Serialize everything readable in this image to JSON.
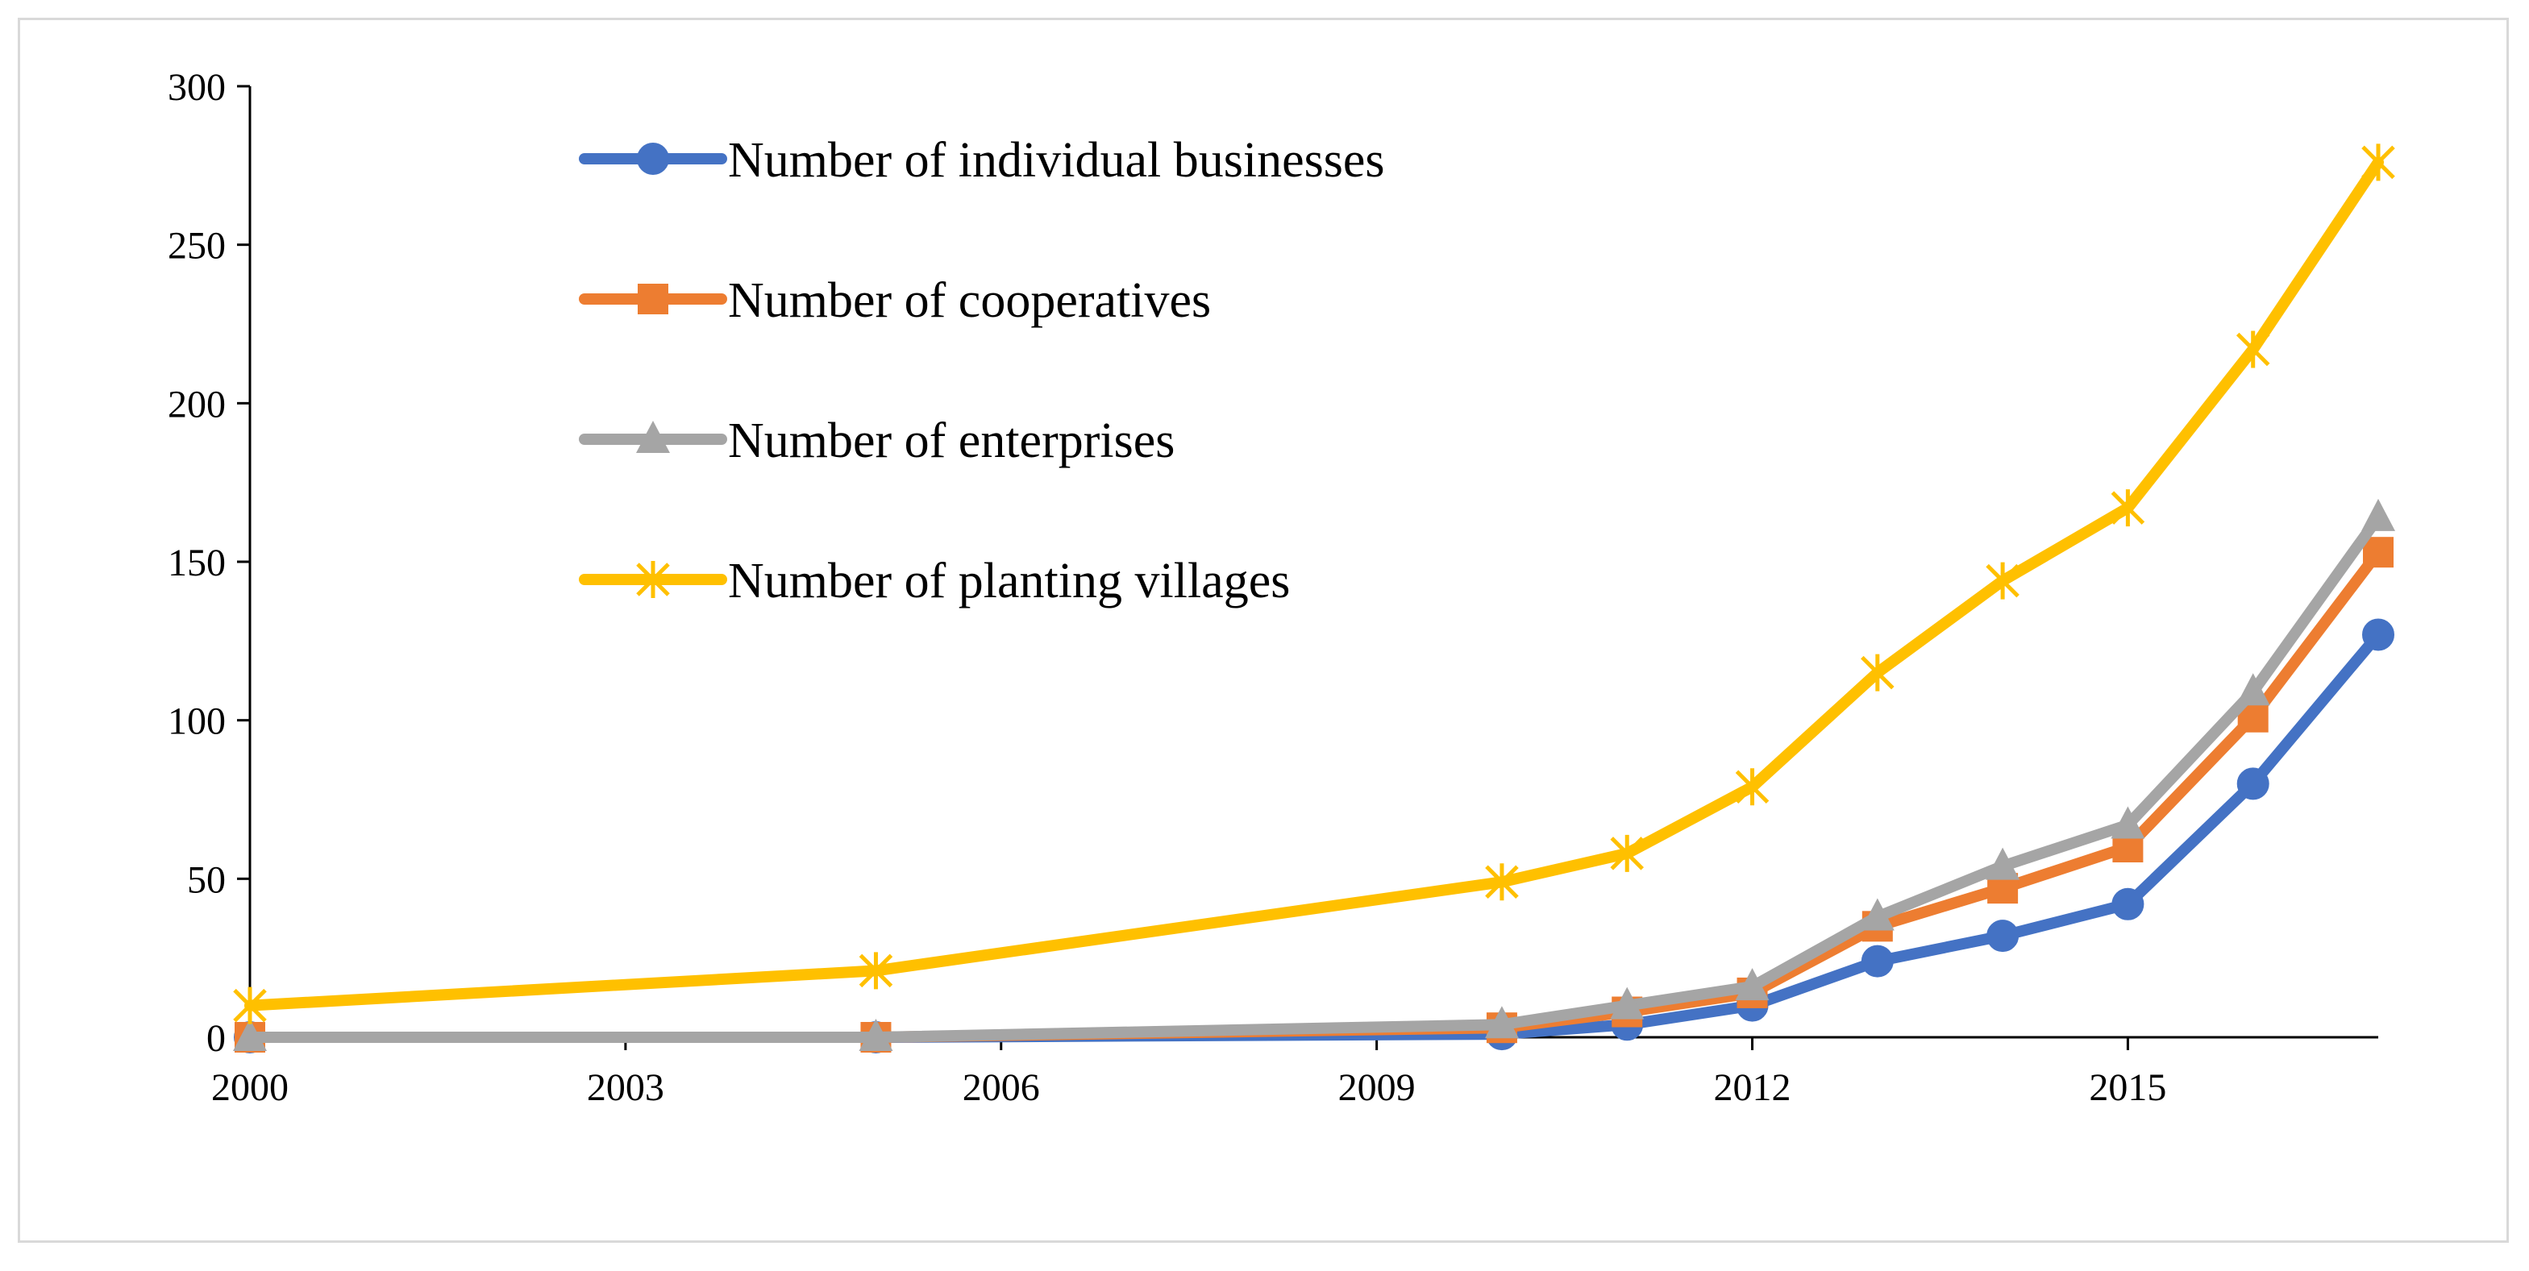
{
  "chart_data": {
    "type": "line",
    "title": "",
    "xlabel": "",
    "ylabel": "",
    "xlim": [
      2000,
      2017
    ],
    "ylim": [
      0,
      300
    ],
    "xticks": [
      2000,
      2003,
      2006,
      2009,
      2012,
      2015
    ],
    "yticks": [
      0,
      50,
      100,
      150,
      200,
      250,
      300
    ],
    "grid": false,
    "legend_position": "top-left inside plot",
    "x": [
      2000,
      2005,
      2010,
      2011,
      2012,
      2013,
      2014,
      2015,
      2016,
      2017
    ],
    "series": [
      {
        "name": "Number of individual businesses",
        "color": "#4472C4",
        "marker": "circle",
        "values": [
          0,
          0,
          1,
          4,
          10,
          24,
          32,
          42,
          80,
          127
        ]
      },
      {
        "name": "Number of cooperatives",
        "color": "#ED7D31",
        "marker": "square",
        "values": [
          0,
          0,
          3,
          8,
          14,
          35,
          47,
          60,
          101,
          153
        ]
      },
      {
        "name": "Number of enterprises",
        "color": "#A5A5A5",
        "marker": "triangle",
        "values": [
          0,
          0,
          4,
          10,
          16,
          38,
          54,
          67,
          109,
          164
        ]
      },
      {
        "name": "Number of planting villages",
        "color": "#FFC000",
        "marker": "star",
        "values": [
          10,
          21,
          49,
          58,
          79,
          115,
          144,
          167,
          217,
          276
        ]
      }
    ]
  }
}
